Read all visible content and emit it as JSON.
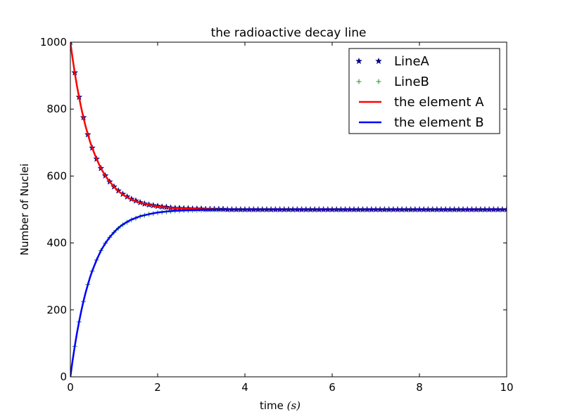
{
  "chart_data": {
    "type": "line",
    "title": "the radioactive decay line",
    "xlabel": "time",
    "xlabel_unit": "(s)",
    "ylabel": "Number of Nuclei",
    "xlim": [
      0,
      10
    ],
    "ylim": [
      0,
      1000
    ],
    "x_ticks": [
      0,
      2,
      4,
      6,
      8,
      10
    ],
    "x_tick_labels": [
      "0",
      "2",
      "4",
      "6",
      "8",
      "10"
    ],
    "y_ticks": [
      0,
      200,
      400,
      600,
      800,
      1000
    ],
    "y_tick_labels": [
      "0",
      "200",
      "400",
      "600",
      "800",
      "1000"
    ],
    "grid": false,
    "legend_position": "top-right",
    "series": [
      {
        "name": "LineA",
        "style": "markers",
        "marker": "star",
        "color": "#000080",
        "x": [
          0.0,
          0.1,
          0.2,
          0.3,
          0.4,
          0.5,
          0.6,
          0.7,
          0.8,
          0.9,
          1.0,
          1.1,
          1.2,
          1.3,
          1.4,
          1.5,
          1.6,
          1.7,
          1.8,
          1.9,
          2.0,
          2.1,
          2.2,
          2.3,
          2.4,
          2.5,
          2.6,
          2.7,
          2.8,
          2.9,
          3.0,
          3.1,
          3.2,
          3.3,
          3.4,
          3.5,
          3.6,
          3.7,
          3.8,
          3.9,
          4.0,
          4.1,
          4.2,
          4.3,
          4.4,
          4.5,
          4.6,
          4.7,
          4.8,
          4.9,
          5.0,
          5.1,
          5.2,
          5.3,
          5.4,
          5.5,
          5.6,
          5.7,
          5.8,
          5.9,
          6.0,
          6.1,
          6.2,
          6.3,
          6.4,
          6.5,
          6.6,
          6.7,
          6.8,
          6.9,
          7.0,
          7.1,
          7.2,
          7.3,
          7.4,
          7.5,
          7.6,
          7.7,
          7.8,
          7.9,
          8.0,
          8.1,
          8.2,
          8.3,
          8.4,
          8.5,
          8.6,
          8.7,
          8.8,
          8.9,
          9.0,
          9.1,
          9.2,
          9.3,
          9.4,
          9.5,
          9.6,
          9.7,
          9.8,
          9.9,
          10.0
        ],
        "y": [
          1000,
          909,
          836,
          775,
          724,
          684,
          651,
          623,
          601,
          583,
          568,
          556,
          546,
          538,
          531,
          526,
          521,
          517,
          514,
          512,
          510,
          508,
          507,
          505,
          504,
          504,
          503,
          503,
          502,
          502,
          502,
          501,
          501,
          501,
          501,
          501,
          500,
          500,
          500,
          500,
          500,
          500,
          500,
          500,
          500,
          500,
          500,
          500,
          500,
          500,
          500,
          500,
          500,
          500,
          500,
          500,
          500,
          500,
          500,
          500,
          500,
          500,
          500,
          500,
          500,
          500,
          500,
          500,
          500,
          500,
          500,
          500,
          500,
          500,
          500,
          500,
          500,
          500,
          500,
          500,
          500,
          500,
          500,
          500,
          500,
          500,
          500,
          500,
          500,
          500,
          500,
          500,
          500,
          500,
          500,
          500,
          500,
          500,
          500,
          500,
          500
        ]
      },
      {
        "name": "LineB",
        "style": "markers",
        "marker": "plus",
        "color": "#2e8b2e",
        "x": [
          0.0,
          0.1,
          0.2,
          0.3,
          0.4,
          0.5,
          0.6,
          0.7,
          0.8,
          0.9,
          1.0,
          1.1,
          1.2,
          1.3,
          1.4,
          1.5,
          1.6,
          1.7,
          1.8,
          1.9,
          2.0,
          2.1,
          2.2,
          2.3,
          2.4,
          2.5,
          2.6,
          2.7,
          2.8,
          2.9,
          3.0,
          3.1,
          3.2,
          3.3,
          3.4,
          3.5,
          3.6,
          3.7,
          3.8,
          3.9,
          4.0,
          4.1,
          4.2,
          4.3,
          4.4,
          4.5,
          4.6,
          4.7,
          4.8,
          4.9,
          5.0,
          5.1,
          5.2,
          5.3,
          5.4,
          5.5,
          5.6,
          5.7,
          5.8,
          5.9,
          6.0,
          6.1,
          6.2,
          6.3,
          6.4,
          6.5,
          6.6,
          6.7,
          6.8,
          6.9,
          7.0,
          7.1,
          7.2,
          7.3,
          7.4,
          7.5,
          7.6,
          7.7,
          7.8,
          7.9,
          8.0,
          8.1,
          8.2,
          8.3,
          8.4,
          8.5,
          8.6,
          8.7,
          8.8,
          8.9,
          9.0,
          9.1,
          9.2,
          9.3,
          9.4,
          9.5,
          9.6,
          9.7,
          9.8,
          9.9,
          10.0
        ],
        "y": [
          0,
          91,
          164,
          225,
          276,
          316,
          349,
          377,
          399,
          417,
          432,
          444,
          454,
          462,
          469,
          474,
          479,
          483,
          486,
          488,
          490,
          492,
          493,
          495,
          496,
          496,
          497,
          497,
          498,
          498,
          498,
          499,
          499,
          499,
          499,
          499,
          500,
          500,
          500,
          500,
          500,
          500,
          500,
          500,
          500,
          500,
          500,
          500,
          500,
          500,
          500,
          500,
          500,
          500,
          500,
          500,
          500,
          500,
          500,
          500,
          500,
          500,
          500,
          500,
          500,
          500,
          500,
          500,
          500,
          500,
          500,
          500,
          500,
          500,
          500,
          500,
          500,
          500,
          500,
          500,
          500,
          500,
          500,
          500,
          500,
          500,
          500,
          500,
          500,
          500,
          500,
          500,
          500,
          500,
          500,
          500,
          500,
          500,
          500,
          500,
          500
        ]
      },
      {
        "name": "the element A",
        "style": "line",
        "color": "#ff0000",
        "x": [
          0.0,
          0.05,
          0.1,
          0.15,
          0.2,
          0.25,
          0.3,
          0.35,
          0.4,
          0.45,
          0.5,
          0.6,
          0.7,
          0.8,
          0.9,
          1.0,
          1.1,
          1.2,
          1.3,
          1.4,
          1.5,
          1.6,
          1.8,
          2.0,
          2.2,
          2.4,
          2.6,
          2.8,
          3.0,
          3.5,
          4.0,
          5.0,
          6.0,
          7.0,
          8.0,
          9.0,
          10.0
        ],
        "y": [
          1000,
          952,
          909,
          870,
          835,
          803,
          774,
          748,
          725,
          703,
          684,
          651,
          623,
          601,
          583,
          568,
          555,
          545,
          537,
          530,
          525,
          520,
          514,
          509,
          506,
          504,
          503,
          502,
          501,
          500,
          500,
          500,
          500,
          500,
          500,
          500,
          500
        ]
      },
      {
        "name": "the element B",
        "style": "line",
        "color": "#0000ff",
        "x": [
          0.0,
          0.05,
          0.1,
          0.15,
          0.2,
          0.25,
          0.3,
          0.35,
          0.4,
          0.45,
          0.5,
          0.6,
          0.7,
          0.8,
          0.9,
          1.0,
          1.1,
          1.2,
          1.3,
          1.4,
          1.5,
          1.6,
          1.8,
          2.0,
          2.2,
          2.4,
          2.6,
          2.8,
          3.0,
          3.5,
          4.0,
          5.0,
          6.0,
          7.0,
          8.0,
          9.0,
          10.0
        ],
        "y": [
          0,
          48,
          91,
          130,
          165,
          197,
          226,
          252,
          275,
          297,
          316,
          349,
          377,
          399,
          417,
          432,
          445,
          455,
          463,
          470,
          475,
          480,
          486,
          491,
          494,
          496,
          497,
          498,
          499,
          500,
          500,
          500,
          500,
          500,
          500,
          500,
          500
        ]
      }
    ]
  }
}
